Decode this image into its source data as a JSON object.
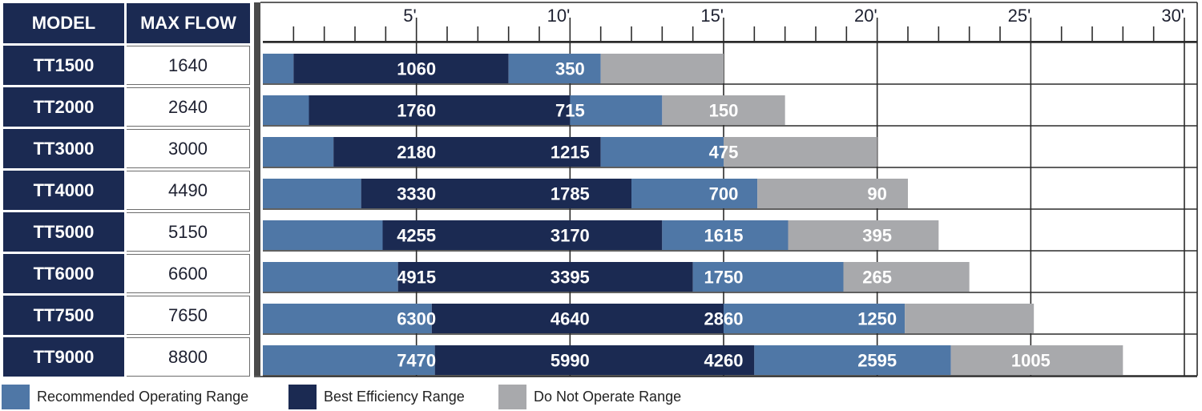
{
  "table": {
    "header_model": "MODEL",
    "header_flow": "MAX FLOW",
    "rows": [
      {
        "model": "TT1500",
        "max_flow": "1640"
      },
      {
        "model": "TT2000",
        "max_flow": "2640"
      },
      {
        "model": "TT3000",
        "max_flow": "3000"
      },
      {
        "model": "TT4000",
        "max_flow": "4490"
      },
      {
        "model": "TT5000",
        "max_flow": "5150"
      },
      {
        "model": "TT6000",
        "max_flow": "6600"
      },
      {
        "model": "TT7500",
        "max_flow": "7650"
      },
      {
        "model": "TT9000",
        "max_flow": "8800"
      }
    ]
  },
  "colors": {
    "recommended": "#4f77a6",
    "best": "#1b2a52",
    "do_not": "#a8a9ac",
    "header": "#1b2a52",
    "grid": "#2b2b2b"
  },
  "legend": [
    {
      "key": "recommended",
      "label": "Recommended Operating Range"
    },
    {
      "key": "best",
      "label": "Best Efficiency Range"
    },
    {
      "key": "do_not",
      "label": "Do Not Operate Range"
    }
  ],
  "chart_data": {
    "type": "bar",
    "orientation": "horizontal",
    "stacked": true,
    "xlim": [
      0,
      30
    ],
    "x_ticks": [
      5,
      10,
      15,
      20,
      25,
      30
    ],
    "x_tick_labels": [
      "5'",
      "10'",
      "15'",
      "20'",
      "25'",
      "30'"
    ],
    "grid": true,
    "categories": [
      "TT1500",
      "TT2000",
      "TT3000",
      "TT4000",
      "TT5000",
      "TT6000",
      "TT7500",
      "TT9000"
    ],
    "rows": [
      {
        "model": "TT1500",
        "segments": [
          {
            "range": "recommended",
            "from": 0,
            "to": 1,
            "label": ""
          },
          {
            "range": "best",
            "from": 1,
            "to": 8,
            "label": "1060"
          },
          {
            "range": "recommended",
            "from": 8,
            "to": 11,
            "label": "350"
          },
          {
            "range": "do_not",
            "from": 11,
            "to": 15,
            "label": ""
          }
        ]
      },
      {
        "model": "TT2000",
        "segments": [
          {
            "range": "recommended",
            "from": 0,
            "to": 1.5,
            "label": ""
          },
          {
            "range": "best",
            "from": 1.5,
            "to": 10,
            "label": "1760"
          },
          {
            "range": "recommended",
            "from": 10,
            "to": 13,
            "label": "715"
          },
          {
            "range": "do_not",
            "from": 13,
            "to": 17,
            "label": "150"
          }
        ]
      },
      {
        "model": "TT3000",
        "segments": [
          {
            "range": "recommended",
            "from": 0,
            "to": 2.3,
            "label": ""
          },
          {
            "range": "best",
            "from": 2.3,
            "to": 11,
            "label": "2180"
          },
          {
            "range": "recommended",
            "from": 11,
            "to": 15,
            "label": "1215"
          },
          {
            "range": "do_not",
            "from": 15,
            "to": 20,
            "label": "475"
          }
        ]
      },
      {
        "model": "TT4000",
        "segments": [
          {
            "range": "recommended",
            "from": 0,
            "to": 3.2,
            "label": ""
          },
          {
            "range": "best",
            "from": 3.2,
            "to": 12,
            "label": "3330"
          },
          {
            "range": "recommended",
            "from": 12,
            "to": 16,
            "label": "1785"
          },
          {
            "range": "do_not",
            "from": 16,
            "to": 21,
            "label": "700"
          }
        ]
      },
      {
        "model": "TT5000",
        "segments": [
          {
            "range": "recommended",
            "from": 0,
            "to": 4,
            "label": ""
          },
          {
            "range": "best",
            "from": 4,
            "to": 13,
            "label": "4255"
          },
          {
            "range": "recommended",
            "from": 13,
            "to": 17,
            "label": "3170"
          },
          {
            "range": "do_not",
            "from": 17,
            "to": 22,
            "label": "1615"
          }
        ]
      },
      {
        "model": "TT6000",
        "segments": [
          {
            "range": "recommended",
            "from": 0,
            "to": 4.4,
            "label": ""
          },
          {
            "range": "best",
            "from": 4.4,
            "to": 14,
            "label": "4915"
          },
          {
            "range": "recommended",
            "from": 14,
            "to": 19,
            "label": "3395"
          },
          {
            "range": "do_not",
            "from": 19,
            "to": 23,
            "label": "1750"
          }
        ]
      },
      {
        "model": "TT7500",
        "segments": [
          {
            "range": "recommended",
            "from": 0,
            "to": 5.5,
            "label": ""
          },
          {
            "range": "best",
            "from": 5.5,
            "to": 15,
            "label": "6300"
          },
          {
            "range": "recommended",
            "from": 15,
            "to": 21,
            "label": "4640"
          },
          {
            "range": "do_not",
            "from": 21,
            "to": 25,
            "label": "2860"
          }
        ]
      },
      {
        "model": "TT9000",
        "segments": [
          {
            "range": "recommended",
            "from": 0,
            "to": 5.5,
            "label": ""
          },
          {
            "range": "best",
            "from": 5.5,
            "to": 16,
            "label": "7470"
          },
          {
            "range": "recommended",
            "from": 16,
            "to": 22.5,
            "label": "5990"
          },
          {
            "range": "do_not",
            "from": 22.5,
            "to": 28,
            "label": "4260"
          }
        ]
      }
    ],
    "value_labels": [
      [
        {
          "x": 5,
          "text": "1060"
        },
        {
          "x": 10,
          "text": "350"
        }
      ],
      [
        {
          "x": 5,
          "text": "1760"
        },
        {
          "x": 10,
          "text": "715"
        },
        {
          "x": 15,
          "text": "150"
        }
      ],
      [
        {
          "x": 5,
          "text": "2180"
        },
        {
          "x": 10,
          "text": "1215"
        },
        {
          "x": 15,
          "text": "475"
        }
      ],
      [
        {
          "x": 5,
          "text": "3330"
        },
        {
          "x": 10,
          "text": "1785"
        },
        {
          "x": 15,
          "text": "700"
        },
        {
          "x": 20,
          "text": "90"
        }
      ],
      [
        {
          "x": 5,
          "text": "4255"
        },
        {
          "x": 10,
          "text": "3170"
        },
        {
          "x": 15,
          "text": "1615"
        },
        {
          "x": 20,
          "text": "395"
        }
      ],
      [
        {
          "x": 5,
          "text": "4915"
        },
        {
          "x": 10,
          "text": "3395"
        },
        {
          "x": 15,
          "text": "1750"
        },
        {
          "x": 20,
          "text": "265"
        }
      ],
      [
        {
          "x": 5,
          "text": "6300"
        },
        {
          "x": 10,
          "text": "4640"
        },
        {
          "x": 15,
          "text": "2860"
        },
        {
          "x": 20,
          "text": "1250"
        }
      ],
      [
        {
          "x": 5,
          "text": "7470"
        },
        {
          "x": 10,
          "text": "5990"
        },
        {
          "x": 15,
          "text": "4260"
        },
        {
          "x": 20,
          "text": "2595"
        },
        {
          "x": 25,
          "text": "1005"
        }
      ]
    ],
    "bar_segments": [
      [
        {
          "range": "recommended",
          "to": 1
        },
        {
          "range": "best",
          "to": 8
        },
        {
          "range": "recommended",
          "to": 11
        },
        {
          "range": "do_not",
          "to": 15
        }
      ],
      [
        {
          "range": "recommended",
          "to": 1.5
        },
        {
          "range": "best",
          "to": 10
        },
        {
          "range": "recommended",
          "to": 13
        },
        {
          "range": "do_not",
          "to": 17
        }
      ],
      [
        {
          "range": "recommended",
          "to": 2.3
        },
        {
          "range": "best",
          "to": 11
        },
        {
          "range": "recommended",
          "to": 15
        },
        {
          "range": "do_not",
          "to": 20
        }
      ],
      [
        {
          "range": "recommended",
          "to": 3.2
        },
        {
          "range": "best",
          "to": 12
        },
        {
          "range": "recommended",
          "to": 16.1
        },
        {
          "range": "do_not",
          "to": 21
        }
      ],
      [
        {
          "range": "recommended",
          "to": 3.9
        },
        {
          "range": "best",
          "to": 13
        },
        {
          "range": "recommended",
          "to": 17.1
        },
        {
          "range": "do_not",
          "to": 22
        }
      ],
      [
        {
          "range": "recommended",
          "to": 4.4
        },
        {
          "range": "best",
          "to": 14
        },
        {
          "range": "recommended",
          "to": 18.9
        },
        {
          "range": "do_not",
          "to": 23
        }
      ],
      [
        {
          "range": "recommended",
          "to": 5.5
        },
        {
          "range": "best",
          "to": 15
        },
        {
          "range": "recommended",
          "to": 20.9
        },
        {
          "range": "do_not",
          "to": 25.1
        }
      ],
      [
        {
          "range": "recommended",
          "to": 5.6
        },
        {
          "range": "best",
          "to": 16
        },
        {
          "range": "recommended",
          "to": 22.4
        },
        {
          "range": "do_not",
          "to": 28
        }
      ]
    ]
  }
}
